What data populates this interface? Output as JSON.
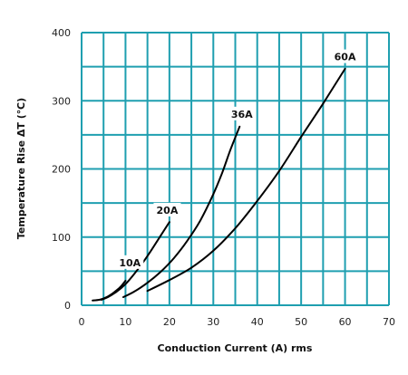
{
  "chart_data": {
    "type": "line",
    "title": "",
    "xlabel": "Conduction Current (A) rms",
    "ylabel": "Temperature Rise ΔT (℃)",
    "xlim": [
      0,
      70
    ],
    "ylim": [
      0,
      400
    ],
    "x_ticks": [
      0,
      10,
      20,
      30,
      40,
      50,
      60,
      70
    ],
    "y_ticks": [
      0,
      100,
      200,
      300,
      400
    ],
    "grid": true,
    "legend": "none",
    "colors": {
      "grid": "#1f9fb0",
      "line": "#000000",
      "label_bg": "#ffffff"
    },
    "series": [
      {
        "name": "10A",
        "x": [
          2.5,
          4,
          5,
          6,
          7,
          8,
          9,
          10
        ],
        "y": [
          7,
          8,
          10,
          13,
          17,
          22,
          28,
          36
        ],
        "label_at": [
          11,
          60
        ]
      },
      {
        "name": "20A",
        "x": [
          4.5,
          6,
          8,
          10,
          12,
          14,
          16,
          18,
          20
        ],
        "y": [
          8,
          12,
          20,
          31,
          46,
          63,
          82,
          102,
          122
        ],
        "label_at": [
          19.5,
          137
        ]
      },
      {
        "name": "36A",
        "x": [
          9.5,
          12,
          15,
          18,
          21,
          24,
          27,
          30,
          32,
          34,
          36
        ],
        "y": [
          12,
          20,
          33,
          49,
          69,
          94,
          124,
          163,
          194,
          230,
          262
        ],
        "label_at": [
          36.5,
          278
        ]
      },
      {
        "name": "60A",
        "x": [
          15,
          20,
          25,
          30,
          35,
          40,
          45,
          50,
          55,
          60
        ],
        "y": [
          21,
          37,
          55,
          80,
          113,
          153,
          197,
          247,
          296,
          347
        ],
        "label_at": [
          60,
          362
        ]
      }
    ]
  }
}
